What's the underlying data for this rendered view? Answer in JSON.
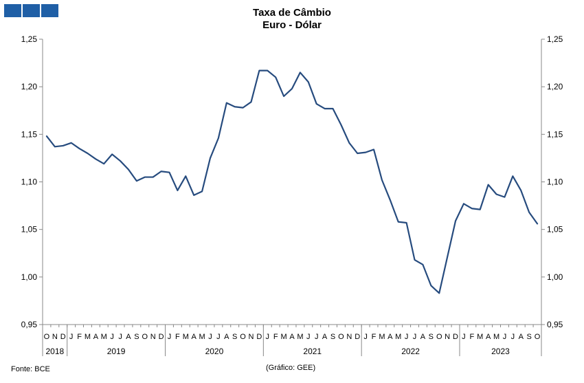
{
  "header": {
    "title": "Taxa de Câmbio",
    "subtitle": "Euro - Dólar",
    "logo_color": "#1f5fa6"
  },
  "footer": {
    "source": "Fonte: BCE",
    "credit": "(Gráfico: GEE)"
  },
  "chart_data": {
    "type": "line",
    "title": "Taxa de Câmbio",
    "subtitle": "Euro - Dólar",
    "ylim": [
      0.95,
      1.25
    ],
    "y_ticks": [
      "0,95",
      "1,00",
      "1,05",
      "1,10",
      "1,15",
      "1,20",
      "1,25"
    ],
    "y_tick_values": [
      0.95,
      1.0,
      1.05,
      1.1,
      1.15,
      1.2,
      1.25
    ],
    "grid": false,
    "line_color": "#264b7e",
    "months": [
      "O",
      "N",
      "D",
      "J",
      "F",
      "M",
      "A",
      "M",
      "J",
      "J",
      "A",
      "S",
      "O",
      "N",
      "D",
      "J",
      "F",
      "M",
      "A",
      "M",
      "J",
      "J",
      "A",
      "S",
      "O",
      "N",
      "D",
      "J",
      "F",
      "M",
      "A",
      "M",
      "J",
      "J",
      "A",
      "S",
      "O",
      "N",
      "D",
      "J",
      "F",
      "M",
      "A",
      "M",
      "J",
      "J",
      "A",
      "S",
      "O",
      "N",
      "D",
      "J",
      "F",
      "M",
      "A",
      "M",
      "J",
      "J",
      "A",
      "S",
      "O"
    ],
    "years": [
      {
        "label": "2018",
        "count": 3
      },
      {
        "label": "2019",
        "count": 12
      },
      {
        "label": "2020",
        "count": 12
      },
      {
        "label": "2021",
        "count": 12
      },
      {
        "label": "2022",
        "count": 12
      },
      {
        "label": "2023",
        "count": 10
      }
    ],
    "series": [
      {
        "values": [
          1.148,
          1.137,
          1.138,
          1.141,
          1.135,
          1.13,
          1.124,
          1.119,
          1.129,
          1.122,
          1.113,
          1.101,
          1.105,
          1.105,
          1.111,
          1.11,
          1.091,
          1.106,
          1.086,
          1.09,
          1.125,
          1.146,
          1.183,
          1.179,
          1.178,
          1.184,
          1.217,
          1.217,
          1.21,
          1.19,
          1.198,
          1.215,
          1.205,
          1.182,
          1.177,
          1.177,
          1.16,
          1.141,
          1.13,
          1.131,
          1.134,
          1.102,
          1.081,
          1.058,
          1.057,
          1.018,
          1.013,
          0.991,
          0.983,
          1.021,
          1.059,
          1.077,
          1.072,
          1.071,
          1.097,
          1.087,
          1.084,
          1.106,
          1.091,
          1.068,
          1.056
        ]
      }
    ]
  }
}
